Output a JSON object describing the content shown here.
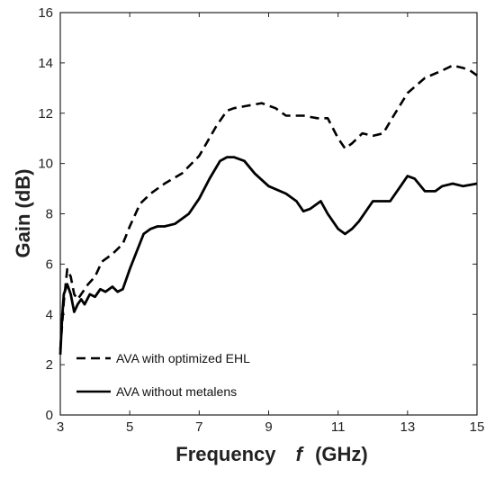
{
  "chart_data": {
    "type": "line",
    "xlabel": "Frequency",
    "xlabel_symbol": "f",
    "xlabel_unit": "(GHz)",
    "ylabel": "Gain (dB)",
    "xlim": [
      3,
      15
    ],
    "ylim": [
      0,
      16
    ],
    "x_ticks": [
      3,
      5,
      7,
      9,
      11,
      13,
      15
    ],
    "y_ticks": [
      0,
      2,
      4,
      6,
      8,
      10,
      12,
      14,
      16
    ],
    "grid": false,
    "legend_position": "bottom-left",
    "series": [
      {
        "name": "AVA with optimized EHL",
        "style": "dashed",
        "color": "#000000",
        "points": [
          [
            3.0,
            2.6
          ],
          [
            3.1,
            4.5
          ],
          [
            3.2,
            5.8
          ],
          [
            3.3,
            5.5
          ],
          [
            3.4,
            4.8
          ],
          [
            3.5,
            4.6
          ],
          [
            3.6,
            4.8
          ],
          [
            3.8,
            5.2
          ],
          [
            4.0,
            5.5
          ],
          [
            4.2,
            6.1
          ],
          [
            4.5,
            6.4
          ],
          [
            4.8,
            6.8
          ],
          [
            5.0,
            7.5
          ],
          [
            5.3,
            8.4
          ],
          [
            5.6,
            8.8
          ],
          [
            6.0,
            9.2
          ],
          [
            6.5,
            9.6
          ],
          [
            7.0,
            10.3
          ],
          [
            7.5,
            11.5
          ],
          [
            7.8,
            12.1
          ],
          [
            8.0,
            12.2
          ],
          [
            8.4,
            12.3
          ],
          [
            8.8,
            12.4
          ],
          [
            9.2,
            12.2
          ],
          [
            9.5,
            11.9
          ],
          [
            10.0,
            11.9
          ],
          [
            10.4,
            11.8
          ],
          [
            10.7,
            11.8
          ],
          [
            11.0,
            11.0
          ],
          [
            11.2,
            10.6
          ],
          [
            11.4,
            10.8
          ],
          [
            11.7,
            11.2
          ],
          [
            12.0,
            11.1
          ],
          [
            12.3,
            11.2
          ],
          [
            12.6,
            11.9
          ],
          [
            13.0,
            12.8
          ],
          [
            13.5,
            13.4
          ],
          [
            14.0,
            13.7
          ],
          [
            14.3,
            13.9
          ],
          [
            14.6,
            13.8
          ],
          [
            14.8,
            13.7
          ],
          [
            15.0,
            13.5
          ]
        ]
      },
      {
        "name": "AVA without metalens",
        "style": "solid",
        "color": "#000000",
        "points": [
          [
            3.0,
            2.4
          ],
          [
            3.05,
            3.8
          ],
          [
            3.1,
            4.8
          ],
          [
            3.2,
            5.2
          ],
          [
            3.3,
            4.8
          ],
          [
            3.4,
            4.1
          ],
          [
            3.5,
            4.4
          ],
          [
            3.6,
            4.6
          ],
          [
            3.7,
            4.4
          ],
          [
            3.85,
            4.8
          ],
          [
            4.0,
            4.7
          ],
          [
            4.15,
            5.0
          ],
          [
            4.3,
            4.9
          ],
          [
            4.5,
            5.1
          ],
          [
            4.65,
            4.9
          ],
          [
            4.8,
            5.0
          ],
          [
            5.0,
            5.8
          ],
          [
            5.2,
            6.5
          ],
          [
            5.4,
            7.2
          ],
          [
            5.6,
            7.4
          ],
          [
            5.8,
            7.5
          ],
          [
            6.0,
            7.5
          ],
          [
            6.3,
            7.6
          ],
          [
            6.7,
            8.0
          ],
          [
            7.0,
            8.6
          ],
          [
            7.3,
            9.4
          ],
          [
            7.6,
            10.1
          ],
          [
            7.8,
            10.25
          ],
          [
            8.0,
            10.25
          ],
          [
            8.3,
            10.1
          ],
          [
            8.6,
            9.6
          ],
          [
            9.0,
            9.1
          ],
          [
            9.5,
            8.8
          ],
          [
            9.8,
            8.5
          ],
          [
            10.0,
            8.1
          ],
          [
            10.2,
            8.2
          ],
          [
            10.5,
            8.5
          ],
          [
            10.7,
            8.0
          ],
          [
            11.0,
            7.4
          ],
          [
            11.2,
            7.2
          ],
          [
            11.4,
            7.4
          ],
          [
            11.6,
            7.7
          ],
          [
            12.0,
            8.5
          ],
          [
            12.2,
            8.5
          ],
          [
            12.5,
            8.5
          ],
          [
            12.8,
            9.1
          ],
          [
            13.0,
            9.5
          ],
          [
            13.2,
            9.4
          ],
          [
            13.5,
            8.9
          ],
          [
            13.8,
            8.9
          ],
          [
            14.0,
            9.1
          ],
          [
            14.3,
            9.2
          ],
          [
            14.6,
            9.1
          ],
          [
            15.0,
            9.2
          ]
        ]
      }
    ]
  }
}
